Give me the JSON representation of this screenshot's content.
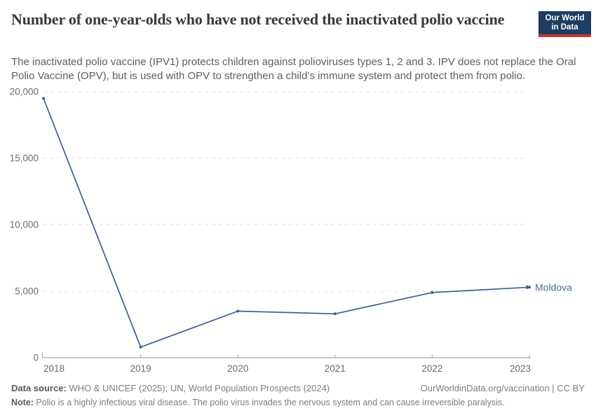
{
  "header": {
    "title": "Number of one-year-olds who have not received the inactivated polio vaccine",
    "subtitle": "The inactivated polio vaccine (IPV1) protects children against polioviruses types 1, 2 and 3. IPV does not replace the Oral Polio Vaccine (OPV), but is used with OPV to strengthen a child’s immune system and protect them from polio.",
    "logo": {
      "line1": "Our World",
      "line2": "in Data"
    }
  },
  "chart_data": {
    "type": "line",
    "title": "Number of one-year-olds who have not received the inactivated polio vaccine",
    "x": [
      2018,
      2019,
      2020,
      2021,
      2022,
      2023
    ],
    "xtick_labels": [
      "2018",
      "2019",
      "2020",
      "2021",
      "2022",
      "2023"
    ],
    "series": [
      {
        "name": "Moldova",
        "values": [
          19500,
          800,
          3500,
          3300,
          4900,
          5300
        ],
        "color": "#3d5c97",
        "label_color": "#4c6aa5"
      }
    ],
    "xlim": [
      2018,
      2023
    ],
    "ylim": [
      0,
      20000
    ],
    "yticks": [
      0,
      5000,
      10000,
      15000,
      20000
    ],
    "ytick_labels": [
      "0",
      "5,000",
      "10,000",
      "15,000",
      "20,000"
    ],
    "grid": "horizontal dashed",
    "legend_position": "end-of-line label"
  },
  "footer": {
    "datasource_label": "Data source:",
    "datasource_text": " WHO & UNICEF (2025); UN, World Population Prospects (2024)",
    "attribution": "OurWorldinData.org/vaccination | CC BY",
    "note_label": "Note:",
    "note_text": " Polio is a highly infectious viral disease. The polio virus invades the nervous system and can cause irreversible paralysis."
  },
  "colors": {
    "accent_line": "#3d5c97",
    "entity_label": "#4c6aa5",
    "logo_navy": "#1d3d63",
    "logo_red": "#c43a2e",
    "title_text": "#3a3a3a",
    "subtitle_text": "#5e5e5e",
    "axis_text": "#6b6b6b",
    "grid_line": "#e2e2e2",
    "axis_line": "#949494",
    "tick_mark": "#aaaaaa",
    "footer_text": "#7d7d7d"
  }
}
